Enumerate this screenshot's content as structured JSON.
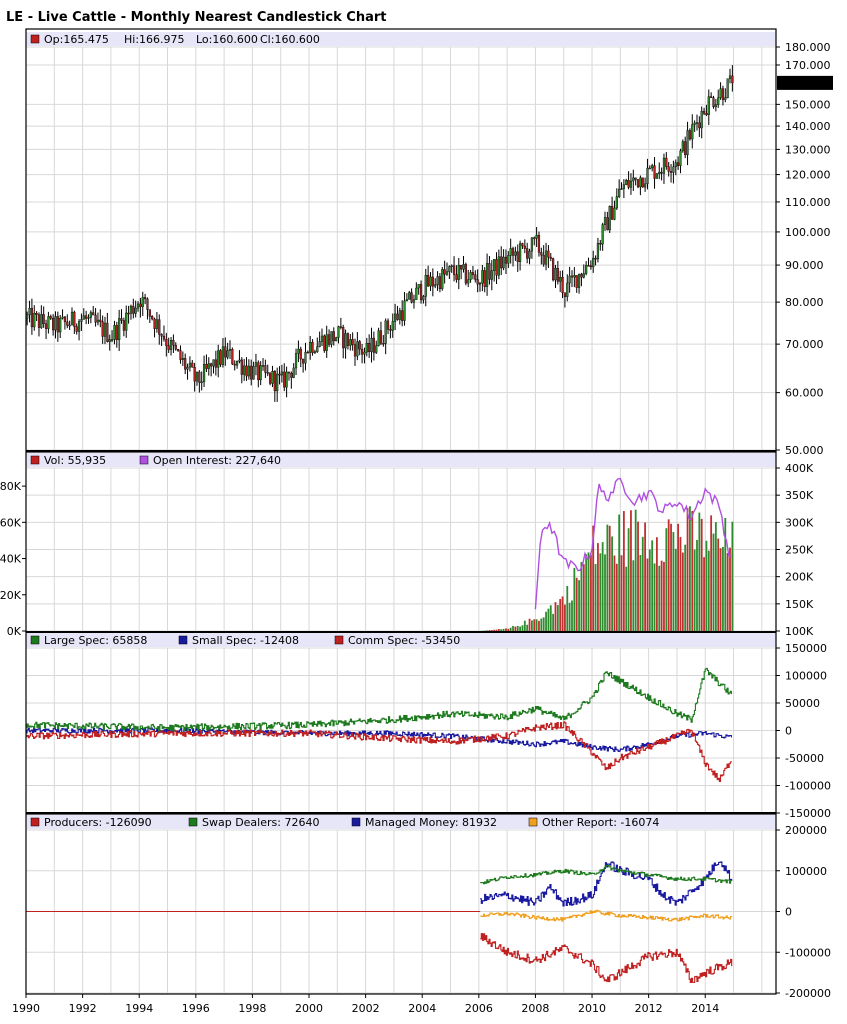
{
  "header": {
    "title": "LE - Live Cattle - Monthly Nearest Candlestick Chart"
  },
  "colors": {
    "up": "#2e8b2e",
    "down": "#b22222",
    "wick": "#000000",
    "grid": "#d8d8d8",
    "legend_bg": "#e6e6f8",
    "oi": "#b050e0",
    "vol_up": "#2e8b2e",
    "vol_down": "#c03030",
    "large": "#1e7a1e",
    "small": "#1a1aa0",
    "comm": "#c02020",
    "producers": "#c02020",
    "swap": "#1e7a1e",
    "managed": "#1a1aa0",
    "other": "#f0a020"
  },
  "chart_data": [
    {
      "type": "candlestick",
      "legend": {
        "open": "Op:165.475",
        "high": "Hi:166.975",
        "low": "Lo:160.600",
        "close": "Cl:160.600"
      },
      "last_price_label": "160.600",
      "y_ticks": [
        "180.000",
        "170.000",
        "150.000",
        "140.000",
        "130.000",
        "120.000",
        "110.000",
        "100.000",
        "90.000",
        "80.000",
        "70.000",
        "60.000",
        "50.000"
      ],
      "y_tick_values": [
        180,
        170,
        150,
        140,
        130,
        120,
        110,
        100,
        90,
        80,
        70,
        60,
        50
      ],
      "ylim": [
        50,
        180
      ],
      "log_scale": true,
      "grid": true,
      "anchors": {
        "year": [
          1990,
          1991,
          1992,
          1993,
          1994,
          1995,
          1996,
          1997,
          1998,
          1999,
          2000,
          2001,
          2002,
          2003,
          2004,
          2005,
          2006,
          2007,
          2008,
          2009,
          2010,
          2011,
          2012,
          2013,
          2014,
          2014.9
        ],
        "close": [
          76,
          74,
          76,
          72,
          81,
          70,
          62,
          68,
          64,
          62,
          70,
          72,
          68,
          76,
          84,
          88,
          86,
          92,
          96,
          83,
          92,
          115,
          121,
          126,
          150,
          160.6
        ]
      }
    },
    {
      "type": "bar+line",
      "legend": {
        "volume": "Vol: 55,935",
        "open_interest": "Open Interest: 227,640"
      },
      "left_ticks": [
        "80K",
        "60K",
        "40K",
        "20K",
        "0K"
      ],
      "left_tick_values": [
        80000,
        60000,
        40000,
        20000,
        0
      ],
      "right_ticks": [
        "400K",
        "350K",
        "300K",
        "250K",
        "200K",
        "150K",
        "100K"
      ],
      "right_tick_values": [
        400000,
        350000,
        300000,
        250000,
        200000,
        150000,
        100000
      ],
      "vol_anchors": {
        "year": [
          2006.0,
          2007.0,
          2008.0,
          2009.0,
          2009.6,
          2010.0,
          2011.0,
          2012.0,
          2013.0,
          2014.0,
          2014.9
        ],
        "value": [
          0,
          1500,
          8000,
          22000,
          42000,
          55000,
          62000,
          66000,
          64000,
          63000,
          56000
        ]
      },
      "oi_anchors": {
        "year": [
          2008.0,
          2008.2,
          2008.5,
          2009.0,
          2009.5,
          2010.0,
          2010.2,
          2010.5,
          2011.0,
          2011.5,
          2012.0,
          2012.5,
          2013.0,
          2013.5,
          2014.0,
          2014.5,
          2014.9
        ],
        "value": [
          140000,
          285000,
          300000,
          225000,
          215000,
          250000,
          365000,
          345000,
          375000,
          340000,
          355000,
          320000,
          340000,
          310000,
          360000,
          330000,
          227640
        ]
      }
    },
    {
      "type": "line",
      "legend": {
        "large": "Large Spec: 65858",
        "small": "Small Spec: -12408",
        "comm": "Comm Spec: -53450"
      },
      "y_ticks": [
        "150000",
        "100000",
        "50000",
        "0",
        "-50000",
        "-100000",
        "-150000"
      ],
      "y_tick_values": [
        150000,
        100000,
        50000,
        0,
        -50000,
        -100000,
        -150000
      ],
      "ylim": [
        -150000,
        150000
      ],
      "large_anchors": {
        "year": [
          1990,
          1995,
          2000,
          2003,
          2005,
          2007,
          2008,
          2009,
          2010,
          2010.5,
          2011,
          2012,
          2013,
          2013.5,
          2014,
          2014.9
        ],
        "value": [
          10000,
          5000,
          10000,
          20000,
          30000,
          25000,
          40000,
          20000,
          60000,
          105000,
          90000,
          60000,
          30000,
          20000,
          110000,
          65858
        ]
      },
      "small_anchors": {
        "year": [
          1990,
          1995,
          2000,
          2003,
          2005,
          2007,
          2008,
          2009,
          2010,
          2011,
          2012,
          2013,
          2014,
          2014.9
        ],
        "value": [
          0,
          0,
          -5000,
          -5000,
          -10000,
          -20000,
          -25000,
          -20000,
          -30000,
          -35000,
          -25000,
          -10000,
          -5000,
          -12408
        ]
      },
      "comm_anchors": {
        "year": [
          1990,
          1995,
          2000,
          2003,
          2005,
          2007,
          2008,
          2009,
          2010,
          2010.5,
          2011,
          2012,
          2013,
          2013.5,
          2014,
          2014.5,
          2014.9
        ],
        "value": [
          -10000,
          -5000,
          -5000,
          -15000,
          -20000,
          -10000,
          5000,
          10000,
          -40000,
          -70000,
          -50000,
          -30000,
          -10000,
          0,
          -60000,
          -90000,
          -53450
        ]
      }
    },
    {
      "type": "line",
      "legend": {
        "producers": "Producers: -126090",
        "swap": "Swap Dealers: 72640",
        "managed": "Managed Money: 81932",
        "other": "Other Report: -16074"
      },
      "y_ticks": [
        "200000",
        "100000",
        "0",
        "-100000",
        "-200000"
      ],
      "y_tick_values": [
        200000,
        100000,
        0,
        -100000,
        -200000
      ],
      "ylim": [
        -200000,
        200000
      ],
      "producers_anchors": {
        "year": [
          1990,
          2006.0,
          2006.05,
          2007,
          2008,
          2009,
          2010,
          2010.5,
          2011,
          2012,
          2013,
          2013.5,
          2014,
          2014.9
        ],
        "value": [
          0,
          0,
          -60000,
          -100000,
          -120000,
          -90000,
          -130000,
          -170000,
          -150000,
          -110000,
          -100000,
          -170000,
          -150000,
          -126090
        ]
      },
      "swap_anchors": {
        "year": [
          2006.05,
          2007,
          2008,
          2009,
          2010,
          2010.5,
          2011,
          2012,
          2013,
          2014,
          2014.9
        ],
        "value": [
          70000,
          85000,
          90000,
          100000,
          90000,
          110000,
          100000,
          90000,
          80000,
          80000,
          72640
        ]
      },
      "managed_anchors": {
        "year": [
          2006.05,
          2007,
          2008,
          2008.5,
          2009,
          2010,
          2010.5,
          2011,
          2012,
          2012.5,
          2013,
          2014,
          2014.5,
          2014.9
        ],
        "value": [
          30000,
          40000,
          20000,
          60000,
          20000,
          40000,
          120000,
          100000,
          80000,
          40000,
          20000,
          80000,
          130000,
          81932
        ]
      },
      "other_anchors": {
        "year": [
          2006.05,
          2007,
          2008,
          2009,
          2010,
          2011,
          2012,
          2013,
          2014,
          2014.9
        ],
        "value": [
          -10000,
          -5000,
          -15000,
          -20000,
          0,
          -10000,
          -15000,
          -20000,
          -10000,
          -16074
        ]
      }
    }
  ],
  "x_axis": {
    "labels": [
      "1990",
      "1992",
      "1994",
      "1996",
      "1998",
      "2000",
      "2002",
      "2004",
      "2006",
      "2008",
      "2010",
      "2012",
      "2014"
    ],
    "values": [
      1990,
      1992,
      1994,
      1996,
      1998,
      2000,
      2002,
      2004,
      2006,
      2008,
      2010,
      2012,
      2014
    ],
    "range": [
      1990,
      2016.5
    ]
  }
}
